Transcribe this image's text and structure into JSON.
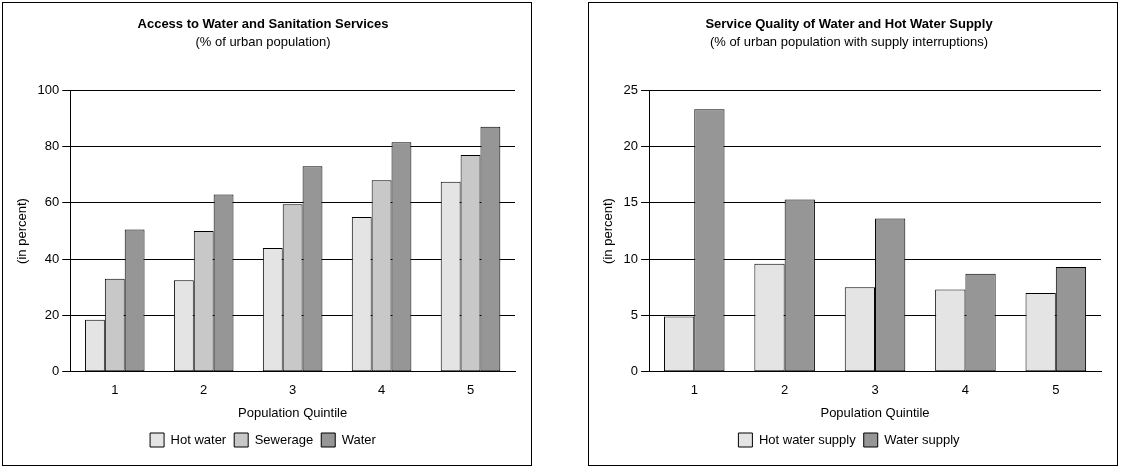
{
  "chart_data": [
    {
      "type": "bar",
      "title": "Access to Water and Sanitation Services",
      "subtitle": "(% of urban population)",
      "xlabel": "Population Quintile",
      "ylabel": "(in percent)",
      "categories": [
        "1",
        "2",
        "3",
        "4",
        "5"
      ],
      "series": [
        {
          "name": "Hot water",
          "color": "#e4e4e4",
          "values": [
            18.5,
            32.5,
            44,
            55,
            67.5
          ]
        },
        {
          "name": "Sewerage",
          "color": "#c8c8c8",
          "values": [
            33,
            50,
            59.5,
            68,
            77
          ]
        },
        {
          "name": "Water",
          "color": "#969696",
          "values": [
            50.5,
            63,
            73,
            81.5,
            87
          ]
        }
      ],
      "ylim": [
        0,
        100
      ],
      "yticks": [
        0,
        20,
        40,
        60,
        80,
        100
      ],
      "grid": "y",
      "legend": "bottom"
    },
    {
      "type": "bar",
      "title": "Service Quality of Water and Hot Water Supply",
      "subtitle": "(% of urban population with supply interruptions)",
      "xlabel": "Population Quintile",
      "ylabel": "(in percent)",
      "categories": [
        "1",
        "2",
        "3",
        "4",
        "5"
      ],
      "series": [
        {
          "name": "Hot water supply",
          "color": "#e4e4e4",
          "values": [
            4.9,
            9.6,
            7.5,
            7.3,
            7.0
          ]
        },
        {
          "name": "Water supply",
          "color": "#969696",
          "values": [
            23.3,
            15.3,
            13.6,
            8.7,
            9.3
          ]
        }
      ],
      "ylim": [
        0,
        25
      ],
      "yticks": [
        0,
        5,
        10,
        15,
        20,
        25
      ],
      "grid": "y",
      "legend": "bottom"
    }
  ]
}
